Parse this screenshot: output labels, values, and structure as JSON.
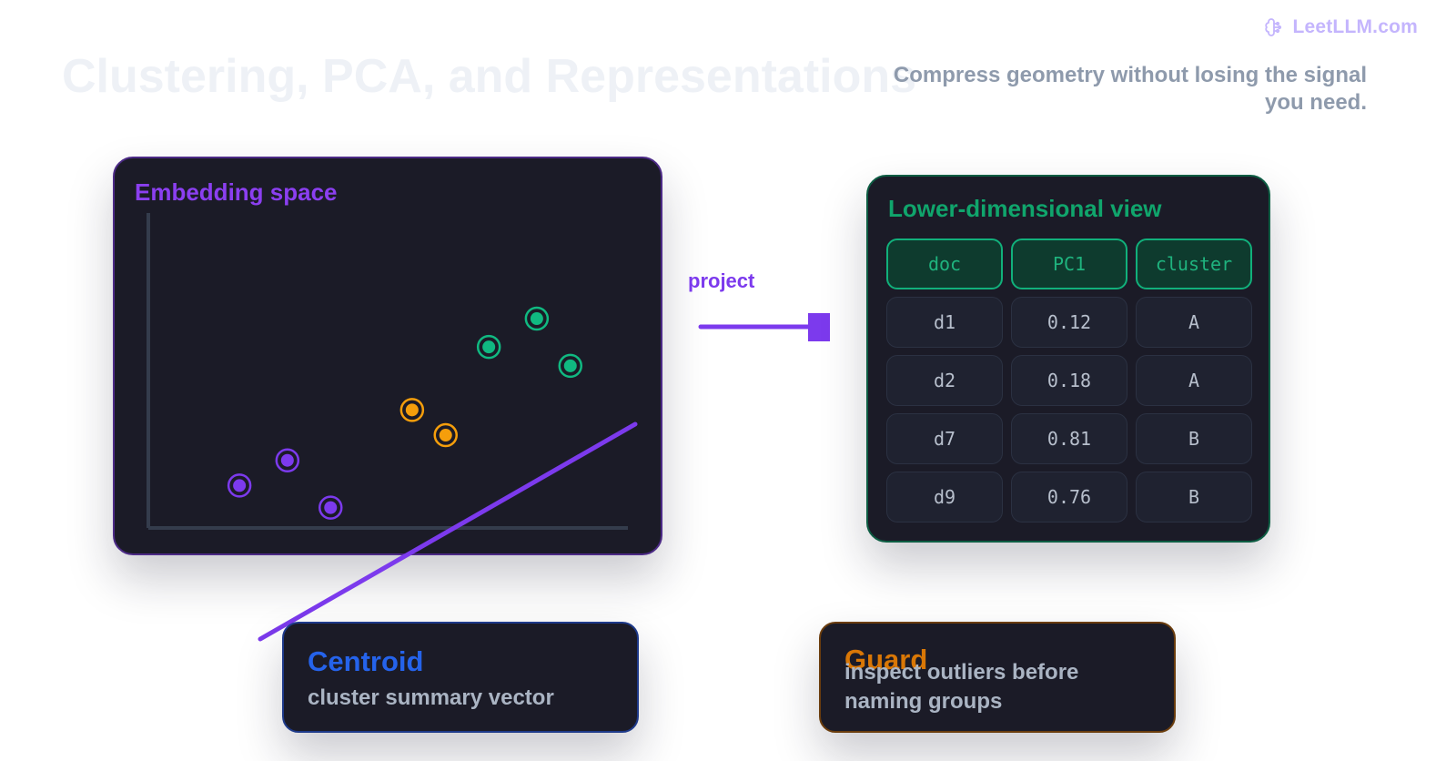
{
  "brand": {
    "icon": "brain-icon",
    "label": "LeetLLM.com"
  },
  "header": {
    "title": "Clustering, PCA, and Representations",
    "subtitle": "Compress geometry without losing the signal you need."
  },
  "colors": {
    "purple": "#7c3aed",
    "green": "#10b981",
    "orange": "#f59e0b",
    "blue": "#2563eb",
    "card_bg": "#1b1b27"
  },
  "embedding_panel": {
    "title": "Embedding space",
    "points": [
      {
        "cluster": "purple",
        "x": 0.19,
        "y": 0.1
      },
      {
        "cluster": "purple",
        "x": 0.29,
        "y": 0.18
      },
      {
        "cluster": "purple",
        "x": 0.38,
        "y": 0.03
      },
      {
        "cluster": "orange",
        "x": 0.55,
        "y": 0.34
      },
      {
        "cluster": "orange",
        "x": 0.62,
        "y": 0.26
      },
      {
        "cluster": "green",
        "x": 0.71,
        "y": 0.54
      },
      {
        "cluster": "green",
        "x": 0.81,
        "y": 0.63
      },
      {
        "cluster": "green",
        "x": 0.88,
        "y": 0.48
      }
    ]
  },
  "connector": {
    "label": "project"
  },
  "lower_panel": {
    "title": "Lower-dimensional view",
    "columns": [
      "doc",
      "PC1",
      "cluster"
    ],
    "rows": [
      [
        "d1",
        "0.12",
        "A"
      ],
      [
        "d2",
        "0.18",
        "A"
      ],
      [
        "d7",
        "0.81",
        "B"
      ],
      [
        "d9",
        "0.76",
        "B"
      ]
    ]
  },
  "centroid_card": {
    "title": "Centroid",
    "description": "cluster summary vector"
  },
  "guard_card": {
    "title": "Guard",
    "description": "inspect outliers before naming groups"
  }
}
